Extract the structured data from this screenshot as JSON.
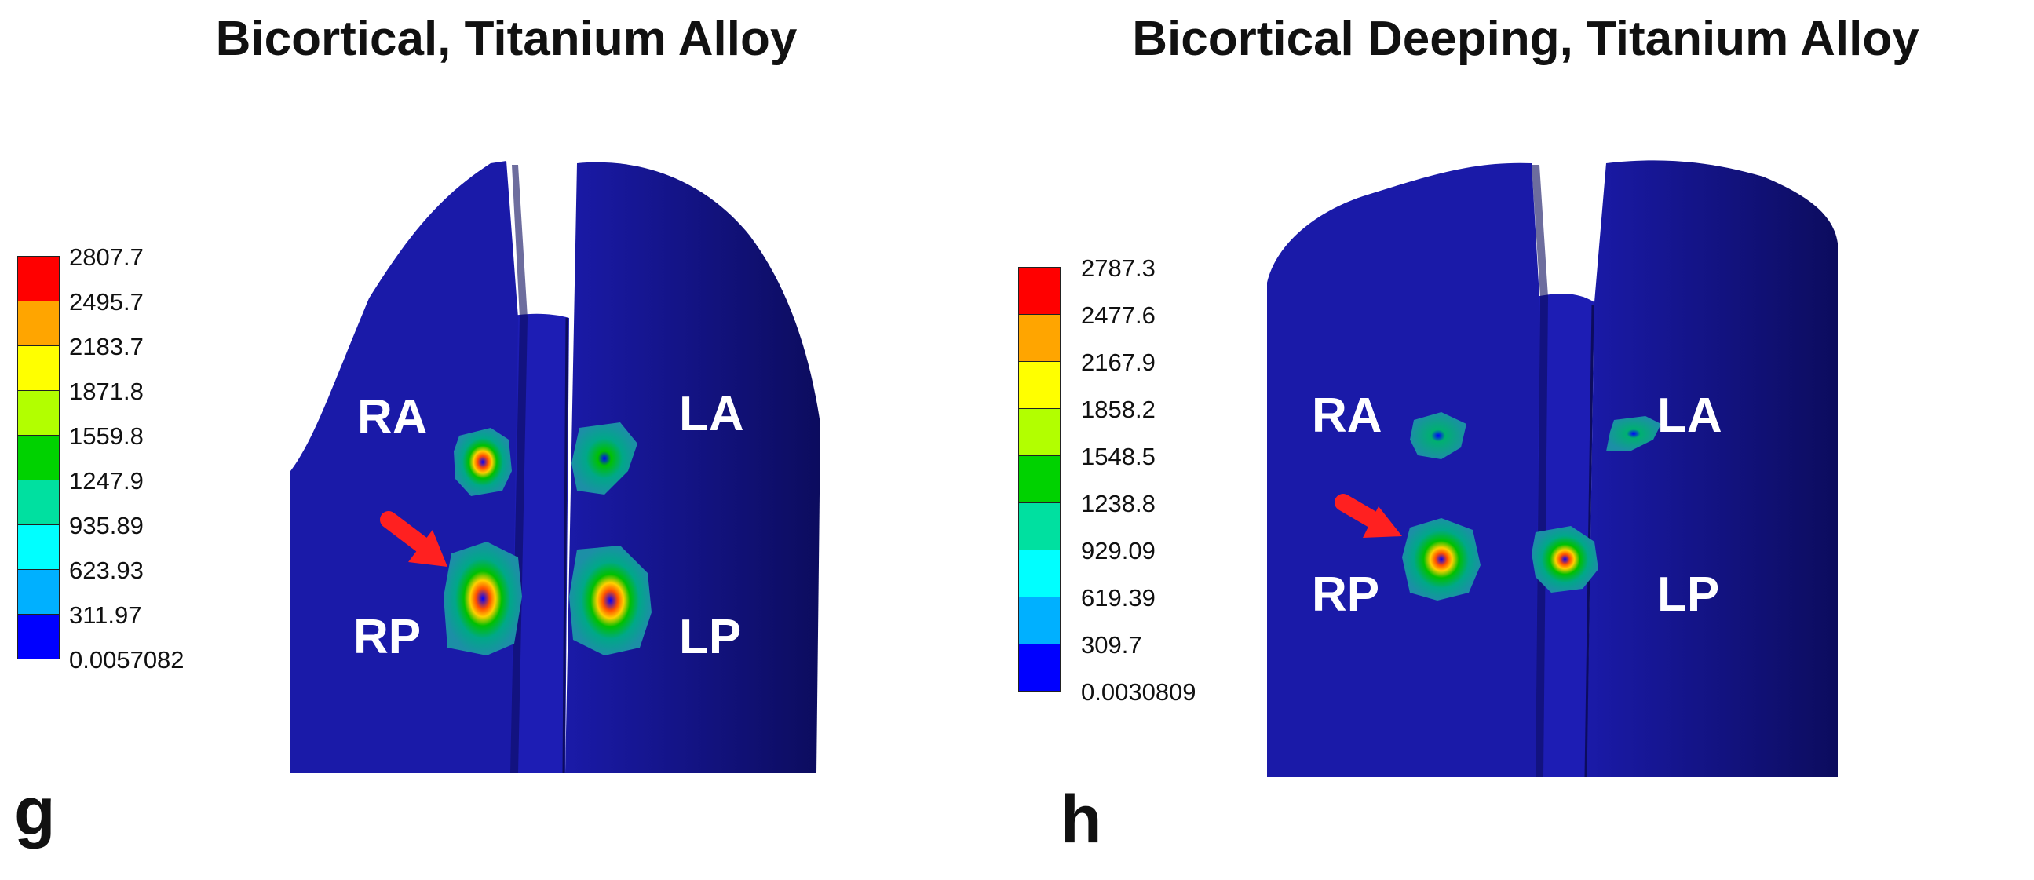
{
  "panels": [
    {
      "letter": "g",
      "title": "Bicortical, Titanium Alloy",
      "legend": [
        "2807.7",
        "2495.7",
        "2183.7",
        "1871.8",
        "1559.8",
        "1247.9",
        "935.89",
        "623.93",
        "311.97",
        "0.0057082"
      ],
      "regions": {
        "ra": "RA",
        "la": "LA",
        "rp": "RP",
        "lp": "LP"
      }
    },
    {
      "letter": "h",
      "title": "Bicortical Deeping, Titanium Alloy",
      "legend": [
        "2787.3",
        "2477.6",
        "2167.9",
        "1858.2",
        "1548.5",
        "1238.8",
        "929.09",
        "619.39",
        "309.7",
        "0.0030809"
      ],
      "regions": {
        "ra": "RA",
        "la": "LA",
        "rp": "RP",
        "lp": "LP"
      }
    }
  ],
  "colors": {
    "scale": [
      "#ff0000",
      "#ffa500",
      "#ffff00",
      "#b2ff00",
      "#00d200",
      "#00e0a0",
      "#00ffff",
      "#00b0ff",
      "#0000ff"
    ],
    "model_blue": "#1a1aa8",
    "model_dark": "#0c0c5e",
    "arrow": "#ff2020"
  }
}
